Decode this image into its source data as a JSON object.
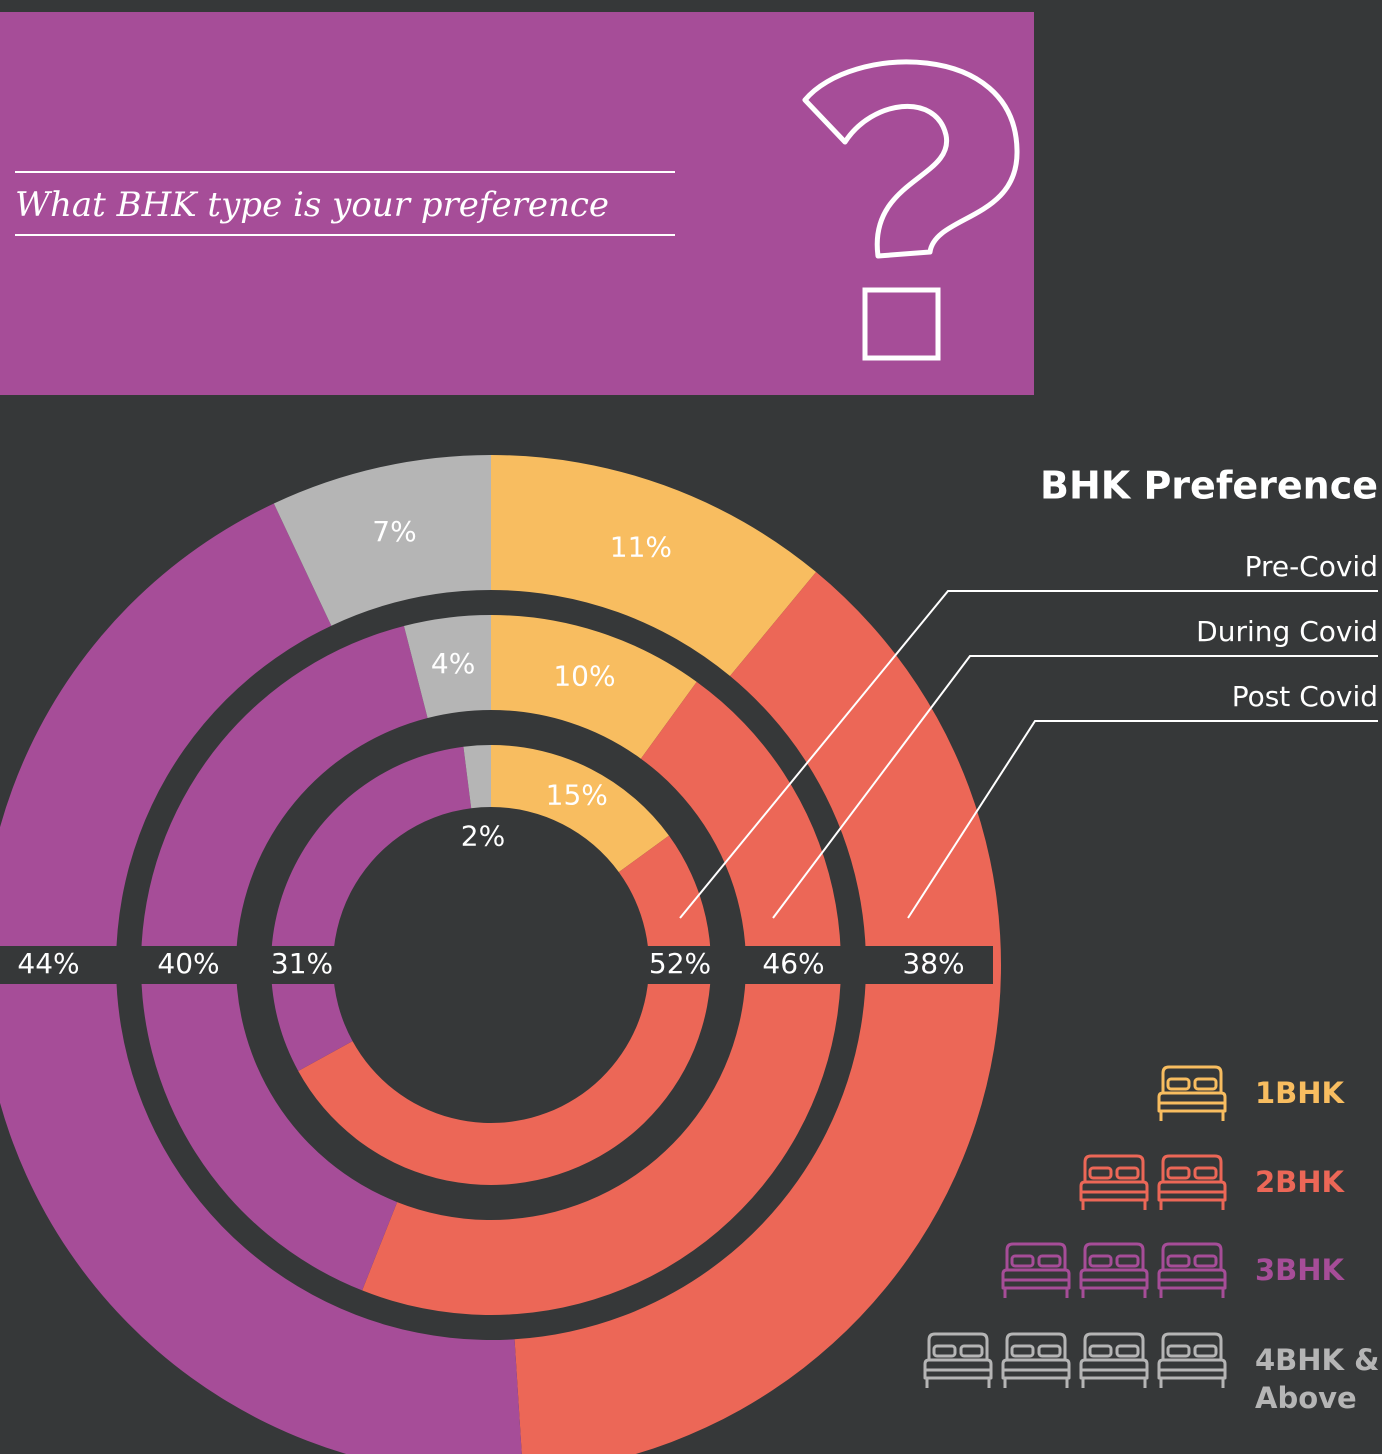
{
  "header": {
    "question": "What BHK type is your preference"
  },
  "chart_data": {
    "type": "donut",
    "title": "BHK Preference",
    "categories": [
      "1BHK",
      "2BHK",
      "3BHK",
      "4BHK & Above"
    ],
    "colors": [
      "#f8bd60",
      "#ec6757",
      "#a64d98",
      "#b5b5b5"
    ],
    "series": [
      {
        "name": "Pre-Covid",
        "values": [
          15,
          52,
          31,
          2
        ]
      },
      {
        "name": "During Covid",
        "values": [
          10,
          46,
          40,
          4
        ]
      },
      {
        "name": "Post Covid",
        "values": [
          11,
          38,
          44,
          7
        ]
      }
    ]
  }
}
